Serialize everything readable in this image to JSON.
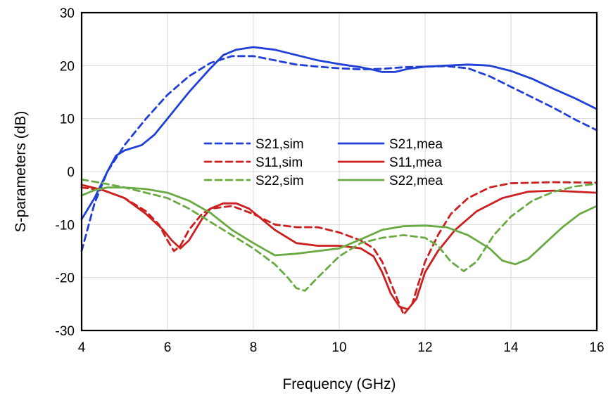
{
  "chart_data": {
    "type": "line",
    "title": "",
    "xlabel": "Frequency (GHz)",
    "ylabel": "S-parameters (dB)",
    "xlim": [
      4,
      16
    ],
    "ylim": [
      -30,
      30
    ],
    "xticks": [
      4,
      6,
      8,
      10,
      12,
      14,
      16
    ],
    "yticks": [
      -30,
      -20,
      -10,
      0,
      10,
      20,
      30
    ],
    "grid": true,
    "legend_position": "center",
    "series": [
      {
        "name": "S21,sim",
        "color": "#1f3fd6",
        "dash": true,
        "points": [
          [
            4,
            -15
          ],
          [
            4.3,
            -6
          ],
          [
            4.6,
            0
          ],
          [
            5,
            5
          ],
          [
            5.5,
            10
          ],
          [
            6,
            14.5
          ],
          [
            6.5,
            18
          ],
          [
            7,
            20.5
          ],
          [
            7.5,
            21.8
          ],
          [
            8,
            21.8
          ],
          [
            8.5,
            21
          ],
          [
            9,
            20.2
          ],
          [
            9.5,
            19.8
          ],
          [
            10,
            19.5
          ],
          [
            10.5,
            19.3
          ],
          [
            11,
            19.4
          ],
          [
            11.5,
            19.7
          ],
          [
            12,
            19.8
          ],
          [
            12.5,
            19.9
          ],
          [
            13,
            19.5
          ],
          [
            13.5,
            18
          ],
          [
            14,
            16
          ],
          [
            14.5,
            14
          ],
          [
            15,
            12
          ],
          [
            15.5,
            9.8
          ],
          [
            16,
            7.8
          ]
        ]
      },
      {
        "name": "S21,mea",
        "color": "#1f3fd6",
        "dash": false,
        "points": [
          [
            4,
            -9
          ],
          [
            4.3,
            -5
          ],
          [
            4.6,
            0
          ],
          [
            4.8,
            3
          ],
          [
            5,
            4
          ],
          [
            5.4,
            5
          ],
          [
            5.7,
            7
          ],
          [
            6,
            10
          ],
          [
            6.5,
            15
          ],
          [
            7,
            19.5
          ],
          [
            7.3,
            22
          ],
          [
            7.6,
            23
          ],
          [
            8,
            23.5
          ],
          [
            8.5,
            23
          ],
          [
            9,
            22
          ],
          [
            9.5,
            21
          ],
          [
            10,
            20.3
          ],
          [
            10.5,
            19.7
          ],
          [
            10.8,
            19.2
          ],
          [
            11,
            18.8
          ],
          [
            11.3,
            18.8
          ],
          [
            11.6,
            19.4
          ],
          [
            12,
            19.8
          ],
          [
            12.5,
            20
          ],
          [
            13,
            20.2
          ],
          [
            13.5,
            20
          ],
          [
            14,
            19
          ],
          [
            14.5,
            17.5
          ],
          [
            15,
            15.6
          ],
          [
            15.5,
            13.8
          ],
          [
            16,
            11.8
          ]
        ]
      },
      {
        "name": "S11,sim",
        "color": "#cc1f1f",
        "dash": true,
        "points": [
          [
            4,
            -3
          ],
          [
            4.5,
            -3.5
          ],
          [
            5,
            -5
          ],
          [
            5.5,
            -7.5
          ],
          [
            5.8,
            -10
          ],
          [
            6,
            -13
          ],
          [
            6.15,
            -15
          ],
          [
            6.3,
            -14
          ],
          [
            6.5,
            -11
          ],
          [
            6.8,
            -8
          ],
          [
            7,
            -7
          ],
          [
            7.5,
            -6.5
          ],
          [
            8,
            -8
          ],
          [
            8.5,
            -10
          ],
          [
            9,
            -10.5
          ],
          [
            9.5,
            -10.5
          ],
          [
            10,
            -11.5
          ],
          [
            10.5,
            -13
          ],
          [
            10.8,
            -14.5
          ],
          [
            11,
            -17
          ],
          [
            11.2,
            -21
          ],
          [
            11.4,
            -25
          ],
          [
            11.5,
            -27
          ],
          [
            11.7,
            -25
          ],
          [
            12,
            -17
          ],
          [
            12.3,
            -12
          ],
          [
            12.6,
            -8
          ],
          [
            13,
            -5
          ],
          [
            13.5,
            -3
          ],
          [
            14,
            -2.2
          ],
          [
            15,
            -2
          ],
          [
            16,
            -2.1
          ]
        ]
      },
      {
        "name": "S11,mea",
        "color": "#cc1f1f",
        "dash": false,
        "points": [
          [
            4,
            -2.5
          ],
          [
            4.5,
            -3.5
          ],
          [
            5,
            -5
          ],
          [
            5.5,
            -8
          ],
          [
            5.9,
            -11
          ],
          [
            6.1,
            -13
          ],
          [
            6.3,
            -14.5
          ],
          [
            6.5,
            -13
          ],
          [
            6.8,
            -9
          ],
          [
            7,
            -7
          ],
          [
            7.3,
            -6
          ],
          [
            7.6,
            -6
          ],
          [
            7.9,
            -7
          ],
          [
            8.2,
            -9
          ],
          [
            8.5,
            -11
          ],
          [
            9,
            -13.5
          ],
          [
            9.5,
            -14
          ],
          [
            10,
            -14
          ],
          [
            10.5,
            -14.5
          ],
          [
            10.8,
            -16
          ],
          [
            11,
            -19
          ],
          [
            11.2,
            -23
          ],
          [
            11.4,
            -25.5
          ],
          [
            11.6,
            -26
          ],
          [
            11.8,
            -24
          ],
          [
            12,
            -19
          ],
          [
            12.3,
            -15
          ],
          [
            12.7,
            -11
          ],
          [
            13.2,
            -7.5
          ],
          [
            13.8,
            -5
          ],
          [
            14.4,
            -3.8
          ],
          [
            15,
            -3.6
          ],
          [
            16,
            -4
          ]
        ]
      },
      {
        "name": "S22,sim",
        "color": "#6aaa42",
        "dash": true,
        "points": [
          [
            4,
            -1.5
          ],
          [
            4.5,
            -2.2
          ],
          [
            5,
            -3
          ],
          [
            5.5,
            -4
          ],
          [
            6,
            -5
          ],
          [
            6.5,
            -7
          ],
          [
            7,
            -9.5
          ],
          [
            7.5,
            -12
          ],
          [
            8,
            -14.5
          ],
          [
            8.5,
            -17.5
          ],
          [
            8.8,
            -20
          ],
          [
            9,
            -22
          ],
          [
            9.2,
            -22.5
          ],
          [
            9.5,
            -20
          ],
          [
            10,
            -16
          ],
          [
            10.5,
            -13.5
          ],
          [
            11,
            -12.5
          ],
          [
            11.5,
            -12
          ],
          [
            12,
            -12.5
          ],
          [
            12.3,
            -14
          ],
          [
            12.6,
            -17
          ],
          [
            12.9,
            -18.8
          ],
          [
            13.2,
            -17
          ],
          [
            13.6,
            -12
          ],
          [
            14,
            -8.5
          ],
          [
            14.5,
            -5.5
          ],
          [
            15,
            -3.8
          ],
          [
            15.5,
            -2.8
          ],
          [
            16,
            -2.3
          ]
        ]
      },
      {
        "name": "S22,mea",
        "color": "#6aaa42",
        "dash": false,
        "points": [
          [
            4,
            -4.5
          ],
          [
            4.3,
            -3.5
          ],
          [
            4.6,
            -3
          ],
          [
            5,
            -3
          ],
          [
            5.5,
            -3.3
          ],
          [
            6,
            -4
          ],
          [
            6.5,
            -5.5
          ],
          [
            7,
            -7.8
          ],
          [
            7.5,
            -11
          ],
          [
            8,
            -13.5
          ],
          [
            8.5,
            -15.8
          ],
          [
            9,
            -15.5
          ],
          [
            9.5,
            -15
          ],
          [
            10,
            -14.5
          ],
          [
            10.5,
            -12.8
          ],
          [
            11,
            -11
          ],
          [
            11.5,
            -10.3
          ],
          [
            12,
            -10.2
          ],
          [
            12.5,
            -10.5
          ],
          [
            13,
            -12
          ],
          [
            13.5,
            -14.5
          ],
          [
            13.8,
            -16.8
          ],
          [
            14.1,
            -17.5
          ],
          [
            14.4,
            -16.5
          ],
          [
            14.8,
            -13.5
          ],
          [
            15.2,
            -10.5
          ],
          [
            15.6,
            -8
          ],
          [
            16,
            -6.5
          ]
        ]
      }
    ]
  }
}
